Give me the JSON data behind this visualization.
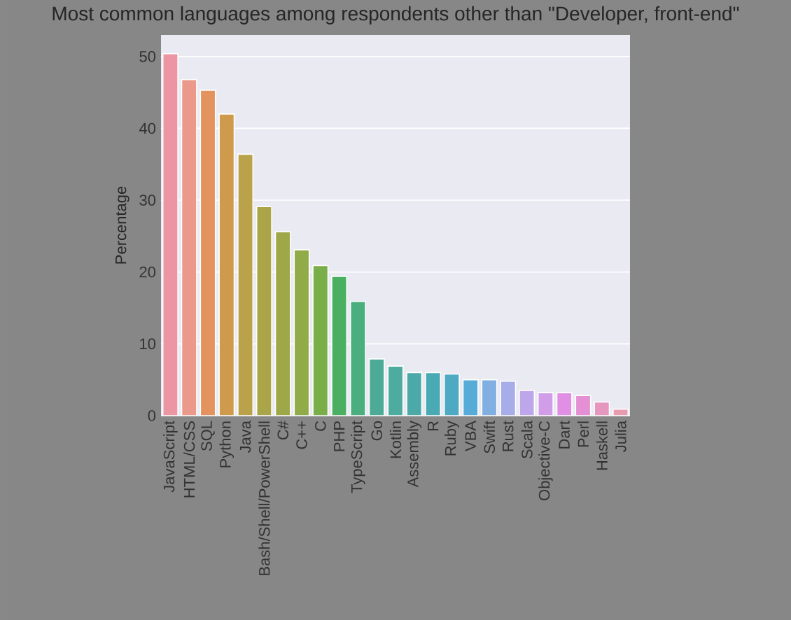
{
  "chart_data": {
    "type": "bar",
    "title": "Most common languages among respondents other than \"Developer, front-end\"",
    "ylabel": "Percentage",
    "categories": [
      "JavaScript",
      "HTML/CSS",
      "SQL",
      "Python",
      "Java",
      "Bash/Shell/PowerShell",
      "C#",
      "C++",
      "C",
      "PHP",
      "TypeScript",
      "Go",
      "Kotlin",
      "Assembly",
      "R",
      "Ruby",
      "VBA",
      "Swift",
      "Rust",
      "Scala",
      "Objective-C",
      "Dart",
      "Perl",
      "Haskell",
      "Julia"
    ],
    "values": [
      50.4,
      46.8,
      45.3,
      42.0,
      36.4,
      29.1,
      25.6,
      23.1,
      20.9,
      19.4,
      15.9,
      7.9,
      6.9,
      6.0,
      6.0,
      5.8,
      5.0,
      5.0,
      4.8,
      3.5,
      3.2,
      3.2,
      2.8,
      1.9,
      0.9
    ],
    "colors": [
      "#ec96a4",
      "#ea998b",
      "#e2935e",
      "#cf9a4b",
      "#b9a24a",
      "#aaa549",
      "#9ea849",
      "#92ab49",
      "#79ae48",
      "#4aaf61",
      "#4bae7f",
      "#4caa96",
      "#4dab9f",
      "#4ba9a8",
      "#4aaab4",
      "#4eaac2",
      "#56acd6",
      "#82afe2",
      "#a7ade9",
      "#bea6ea",
      "#d19de8",
      "#e08fe5",
      "#e590d5",
      "#e697c0",
      "#e89ab0"
    ],
    "ylim": [
      0,
      53
    ],
    "yticks": [
      0,
      10,
      20,
      30,
      40,
      50
    ],
    "grid": "y"
  }
}
